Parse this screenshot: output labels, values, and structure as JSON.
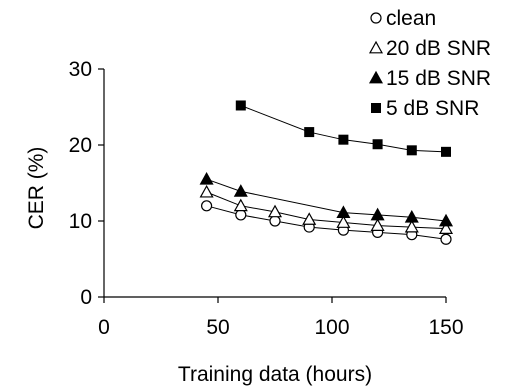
{
  "chart_data": {
    "type": "line",
    "title": "",
    "xlabel": "Training data (hours)",
    "ylabel": "CER (%)",
    "xlim": [
      0,
      150
    ],
    "ylim": [
      0,
      30
    ],
    "xticks": [
      0,
      50,
      100,
      150
    ],
    "yticks": [
      0,
      10,
      20,
      30
    ],
    "grid": false,
    "legend_position": "top-right",
    "series": [
      {
        "name": "clean",
        "marker": "circle-open",
        "color": "#000000",
        "x": [
          45,
          60,
          75,
          90,
          105,
          120,
          135,
          150
        ],
        "y": [
          12.0,
          10.8,
          10.0,
          9.2,
          8.8,
          8.5,
          8.2,
          7.6
        ]
      },
      {
        "name": "20 dB SNR",
        "marker": "triangle-open",
        "color": "#000000",
        "x": [
          45,
          60,
          75,
          90,
          105,
          120,
          135,
          150
        ],
        "y": [
          13.8,
          12.0,
          11.2,
          10.2,
          9.8,
          9.4,
          9.2,
          9.0
        ]
      },
      {
        "name": "15 dB SNR",
        "marker": "triangle-filled",
        "color": "#000000",
        "x": [
          45,
          60,
          105,
          120,
          135,
          150
        ],
        "y": [
          15.5,
          13.9,
          11.1,
          10.8,
          10.5,
          10.0
        ]
      },
      {
        "name": "5 dB SNR",
        "marker": "square-filled",
        "color": "#000000",
        "x": [
          60,
          90,
          105,
          120,
          135,
          150
        ],
        "y": [
          25.2,
          21.7,
          20.7,
          20.1,
          19.3,
          19.1
        ]
      }
    ]
  }
}
